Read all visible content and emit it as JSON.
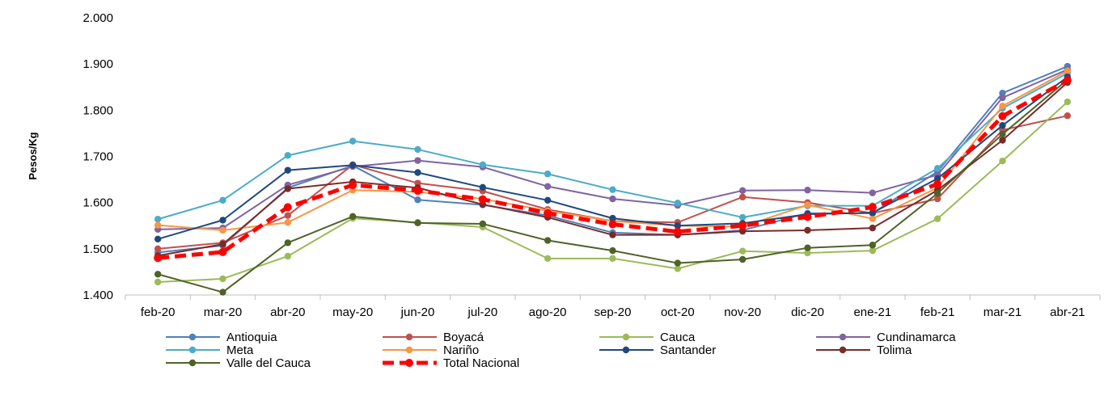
{
  "chart_data": {
    "type": "line",
    "title": "",
    "xlabel": "",
    "ylabel": "Pesos/Kg",
    "ylim": [
      1400,
      2000
    ],
    "yticks": [
      1400,
      1500,
      1600,
      1700,
      1800,
      1900,
      2000
    ],
    "ytick_labels": [
      "1.400",
      "1.500",
      "1.600",
      "1.700",
      "1.800",
      "1.900",
      "2.000"
    ],
    "grid": false,
    "legend_position": "bottom",
    "categories": [
      "feb-20",
      "mar-20",
      "abr-20",
      "may-20",
      "jun-20",
      "jul-20",
      "ago-20",
      "sep-20",
      "oct-20",
      "nov-20",
      "dic-20",
      "ene-21",
      "feb-21",
      "mar-21",
      "abr-21"
    ],
    "series": [
      {
        "name": "Antioquia",
        "color": "#4F81BD",
        "dashed": false,
        "values": [
          1492,
          1507,
          1632,
          1680,
          1606,
          1595,
          1572,
          1535,
          1530,
          1540,
          1577,
          1577,
          1667,
          1837,
          1895
        ]
      },
      {
        "name": "Boyacá",
        "color": "#C0504D",
        "dashed": false,
        "values": [
          1500,
          1513,
          1572,
          1682,
          1642,
          1625,
          1585,
          1560,
          1557,
          1612,
          1600,
          1577,
          1608,
          1757,
          1788
        ]
      },
      {
        "name": "Cauca",
        "color": "#9BBB59",
        "dashed": false,
        "values": [
          1428,
          1435,
          1484,
          1566,
          1557,
          1547,
          1479,
          1479,
          1457,
          1495,
          1491,
          1496,
          1565,
          1690,
          1818
        ]
      },
      {
        "name": "Cundinamarca",
        "color": "#8064A2",
        "dashed": false,
        "values": [
          1542,
          1545,
          1638,
          1678,
          1691,
          1677,
          1635,
          1608,
          1594,
          1626,
          1627,
          1621,
          1660,
          1827,
          1888
        ]
      },
      {
        "name": "Meta",
        "color": "#4BACC6",
        "dashed": false,
        "values": [
          1564,
          1605,
          1702,
          1733,
          1715,
          1682,
          1662,
          1628,
          1599,
          1568,
          1593,
          1593,
          1674,
          1804,
          1880
        ]
      },
      {
        "name": "Nariño",
        "color": "#F79646",
        "dashed": false,
        "values": [
          1551,
          1540,
          1557,
          1627,
          1623,
          1608,
          1582,
          1560,
          1550,
          1548,
          1595,
          1565,
          1632,
          1809,
          1885
        ]
      },
      {
        "name": "Santander",
        "color": "#1F497D",
        "dashed": false,
        "values": [
          1521,
          1562,
          1670,
          1681,
          1665,
          1633,
          1605,
          1566,
          1550,
          1555,
          1575,
          1578,
          1652,
          1767,
          1872
        ]
      },
      {
        "name": "Tolima",
        "color": "#772C2A",
        "dashed": false,
        "values": [
          1485,
          1510,
          1630,
          1645,
          1632,
          1596,
          1568,
          1530,
          1530,
          1538,
          1540,
          1545,
          1627,
          1735,
          1860
        ]
      },
      {
        "name": "Valle del Cauca",
        "color": "#4F6228",
        "dashed": false,
        "values": [
          1445,
          1406,
          1513,
          1570,
          1556,
          1554,
          1518,
          1496,
          1469,
          1477,
          1502,
          1508,
          1620,
          1748,
          1866
        ]
      },
      {
        "name": "Total Nacional",
        "color": "#FF0000",
        "dashed": true,
        "values": [
          1480,
          1493,
          1590,
          1638,
          1626,
          1607,
          1577,
          1553,
          1537,
          1550,
          1569,
          1590,
          1640,
          1787,
          1865
        ]
      }
    ]
  }
}
